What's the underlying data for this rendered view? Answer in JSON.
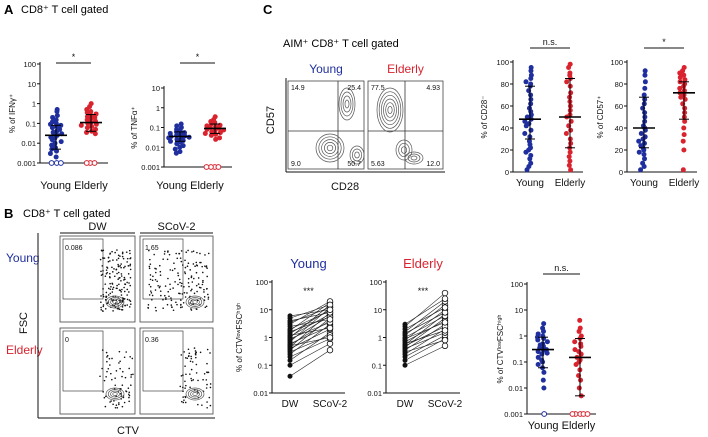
{
  "panels": {
    "A": {
      "letter": "A",
      "header": "CD8⁺ T cell gated"
    },
    "B": {
      "letter": "B",
      "header": "CD8⁺ T cell gated"
    },
    "C": {
      "letter": "C",
      "header": "AIM⁺ CD8⁺ T cell gated"
    }
  },
  "colors": {
    "young": "#1f2f9e",
    "elderly": "#d9232f",
    "axis": "#111111",
    "contour": "#555555"
  },
  "flow": {
    "C": {
      "xlabel": "CD28",
      "ylabel": "CD57",
      "plots": [
        {
          "group": "Young",
          "quadrants": [
            "14.9",
            "25.4",
            "9.0",
            "50.7"
          ]
        },
        {
          "group": "Elderly",
          "quadrants": [
            "77.5",
            "4.93",
            "5.63",
            "12.0"
          ]
        }
      ]
    },
    "B": {
      "xlabel": "CTV",
      "ylabel": "FSC",
      "columns": [
        "DW",
        "SCoV-2"
      ],
      "rows": [
        "Young",
        "Elderly"
      ],
      "gates": [
        [
          "0.086",
          "1.65"
        ],
        [
          "0",
          "0.36"
        ]
      ]
    }
  },
  "chart_data": [
    {
      "id": "A-ifng",
      "type": "scatter",
      "title": "IFNγ",
      "ylabel": "% of IFNγ⁺",
      "yscale": "log",
      "ylim": [
        0.001,
        100
      ],
      "yticks": [
        "0.001",
        "0.01",
        "0.1",
        "1",
        "10",
        "100"
      ],
      "categories": [
        "Young",
        "Elderly"
      ],
      "xlabel": "Young Elderly",
      "significance": "*",
      "series": [
        {
          "name": "Young",
          "median": 0.025,
          "iqr": [
            0.005,
            0.08
          ],
          "values": [
            0.5,
            0.4,
            0.25,
            0.2,
            0.15,
            0.12,
            0.1,
            0.09,
            0.08,
            0.07,
            0.06,
            0.05,
            0.04,
            0.035,
            0.03,
            0.025,
            0.02,
            0.018,
            0.015,
            0.012,
            0.01,
            0.008,
            0.006,
            0.005,
            0.004,
            0.003,
            0.002,
            0.001,
            0.001,
            0.001
          ]
        },
        {
          "name": "Elderly",
          "median": 0.11,
          "iqr": [
            0.04,
            0.28
          ],
          "values": [
            1.0,
            0.7,
            0.5,
            0.4,
            0.35,
            0.3,
            0.25,
            0.22,
            0.2,
            0.17,
            0.15,
            0.13,
            0.11,
            0.1,
            0.09,
            0.08,
            0.07,
            0.06,
            0.05,
            0.04,
            0.035,
            0.03,
            0.001,
            0.001,
            0.001
          ]
        }
      ]
    },
    {
      "id": "A-tnfa",
      "type": "scatter",
      "title": "TNFα",
      "ylabel": "% of TNFα⁺",
      "yscale": "log",
      "ylim": [
        0.001,
        10
      ],
      "yticks": [
        "0.001",
        "0.01",
        "0.1",
        "1",
        "10"
      ],
      "categories": [
        "Young",
        "Elderly"
      ],
      "xlabel": "Young Elderly",
      "significance": "*",
      "series": [
        {
          "name": "Young",
          "median": 0.035,
          "iqr": [
            0.02,
            0.06
          ],
          "values": [
            0.15,
            0.12,
            0.1,
            0.08,
            0.07,
            0.06,
            0.055,
            0.05,
            0.045,
            0.04,
            0.037,
            0.035,
            0.032,
            0.03,
            0.028,
            0.025,
            0.022,
            0.02,
            0.018,
            0.015,
            0.012,
            0.01,
            0.008,
            0.006,
            0.005
          ]
        },
        {
          "name": "Elderly",
          "median": 0.09,
          "iqr": [
            0.05,
            0.15
          ],
          "values": [
            0.35,
            0.25,
            0.2,
            0.18,
            0.15,
            0.13,
            0.12,
            0.11,
            0.1,
            0.09,
            0.08,
            0.075,
            0.07,
            0.06,
            0.055,
            0.05,
            0.045,
            0.04,
            0.03,
            0.025,
            0.001,
            0.001,
            0.001,
            0.001
          ]
        }
      ]
    },
    {
      "id": "C-cd28",
      "type": "scatter",
      "title": "n.s.",
      "ylabel": "% of CD28⁻",
      "yscale": "linear",
      "ylim": [
        0,
        100
      ],
      "yticks": [
        "0",
        "20",
        "40",
        "60",
        "80",
        "100"
      ],
      "categories": [
        "Young",
        "Elderly"
      ],
      "significance": "n.s.",
      "series": [
        {
          "name": "Young",
          "median": 48,
          "iqr": [
            30,
            78
          ],
          "values": [
            95,
            92,
            88,
            85,
            82,
            80,
            78,
            74,
            70,
            66,
            62,
            58,
            55,
            52,
            50,
            48,
            46,
            44,
            42,
            38,
            35,
            32,
            28,
            25,
            22,
            20,
            18,
            15,
            12,
            8,
            5,
            2
          ]
        },
        {
          "name": "Elderly",
          "median": 50,
          "iqr": [
            22,
            85
          ],
          "values": [
            98,
            95,
            90,
            88,
            85,
            82,
            78,
            72,
            68,
            64,
            60,
            56,
            52,
            50,
            46,
            42,
            38,
            35,
            30,
            26,
            22,
            18,
            14,
            10,
            6,
            2
          ]
        }
      ]
    },
    {
      "id": "C-cd57",
      "type": "scatter",
      "title": "*",
      "ylabel": "% of CD57⁺",
      "yscale": "linear",
      "ylim": [
        0,
        100
      ],
      "yticks": [
        "0",
        "20",
        "40",
        "60",
        "80",
        "100"
      ],
      "categories": [
        "Young",
        "Elderly"
      ],
      "significance": "*",
      "series": [
        {
          "name": "Young",
          "median": 40,
          "iqr": [
            22,
            68
          ],
          "values": [
            92,
            88,
            82,
            76,
            70,
            66,
            62,
            58,
            54,
            50,
            46,
            42,
            40,
            38,
            35,
            32,
            30,
            28,
            26,
            24,
            22,
            20,
            18,
            16,
            12,
            8,
            5,
            2
          ]
        },
        {
          "name": "Elderly",
          "median": 72,
          "iqr": [
            48,
            82
          ],
          "values": [
            95,
            92,
            90,
            88,
            86,
            84,
            82,
            80,
            78,
            76,
            74,
            72,
            70,
            68,
            66,
            62,
            58,
            54,
            50,
            46,
            40,
            34,
            28,
            20,
            2
          ]
        }
      ]
    },
    {
      "id": "B-young",
      "type": "paired",
      "title": "Young",
      "ylabel": "% of CTVˡᵒʷFSCʰⁱᵍʰ",
      "yscale": "log",
      "ylim": [
        0.01,
        100
      ],
      "yticks": [
        "0.01",
        "0.1",
        "1",
        "10",
        "100"
      ],
      "categories": [
        "DW",
        "SCoV-2"
      ],
      "significance": "***",
      "pairs": [
        [
          0.04,
          0.35
        ],
        [
          0.1,
          0.6
        ],
        [
          0.15,
          1.5
        ],
        [
          0.2,
          0.9
        ],
        [
          0.25,
          3.0
        ],
        [
          0.3,
          1.2
        ],
        [
          0.35,
          5.0
        ],
        [
          0.4,
          2.0
        ],
        [
          0.45,
          8.0
        ],
        [
          0.5,
          1.0
        ],
        [
          0.55,
          4.0
        ],
        [
          0.6,
          2.5
        ],
        [
          0.7,
          12.0
        ],
        [
          0.8,
          6.0
        ],
        [
          0.9,
          3.5
        ],
        [
          1.0,
          15.0
        ],
        [
          1.1,
          7.0
        ],
        [
          1.2,
          2.2
        ],
        [
          1.4,
          10.0
        ],
        [
          1.6,
          5.5
        ],
        [
          1.8,
          18.0
        ],
        [
          2.0,
          9.0
        ],
        [
          2.5,
          4.5
        ],
        [
          3.0,
          20.0
        ],
        [
          3.5,
          12.0
        ],
        [
          4.0,
          8.0
        ],
        [
          5.0,
          15.0
        ],
        [
          6.0,
          10.0
        ]
      ]
    },
    {
      "id": "B-elderly",
      "type": "paired",
      "title": "Elderly",
      "ylabel": "",
      "yscale": "log",
      "ylim": [
        0.01,
        100
      ],
      "yticks": [
        "0.01",
        "0.1",
        "1",
        "10",
        "100"
      ],
      "categories": [
        "DW",
        "SCoV-2"
      ],
      "significance": "***",
      "pairs": [
        [
          0.1,
          0.5
        ],
        [
          0.15,
          0.9
        ],
        [
          0.2,
          1.2
        ],
        [
          0.25,
          2.0
        ],
        [
          0.3,
          0.8
        ],
        [
          0.35,
          3.0
        ],
        [
          0.4,
          1.5
        ],
        [
          0.45,
          5.0
        ],
        [
          0.5,
          2.5
        ],
        [
          0.55,
          7.0
        ],
        [
          0.6,
          1.8
        ],
        [
          0.7,
          4.0
        ],
        [
          0.8,
          10.0
        ],
        [
          0.9,
          3.5
        ],
        [
          1.0,
          6.0
        ],
        [
          1.2,
          15.0
        ],
        [
          1.4,
          8.0
        ],
        [
          1.6,
          20.0
        ],
        [
          2.0,
          12.0
        ],
        [
          2.5,
          40.0
        ],
        [
          3.0,
          25.0
        ]
      ]
    },
    {
      "id": "B-summary",
      "type": "scatter",
      "title": "n.s.",
      "ylabel": "% of CTVˡᵒʷFSCʰⁱᵍʰ",
      "yscale": "log",
      "ylim": [
        0.001,
        100
      ],
      "yticks": [
        "0.001",
        "0.01",
        "0.1",
        "1",
        "10",
        "100"
      ],
      "categories": [
        "Young",
        "Elderly"
      ],
      "xlabel": "Young Elderly",
      "significance": "n.s.",
      "series": [
        {
          "name": "Young",
          "median": 0.3,
          "iqr": [
            0.06,
            0.9
          ],
          "values": [
            3.0,
            2.0,
            1.5,
            1.2,
            1.0,
            0.9,
            0.8,
            0.7,
            0.6,
            0.5,
            0.45,
            0.4,
            0.35,
            0.3,
            0.28,
            0.25,
            0.22,
            0.2,
            0.15,
            0.12,
            0.1,
            0.08,
            0.06,
            0.04,
            0.02,
            0.01,
            0.001
          ]
        },
        {
          "name": "Elderly",
          "median": 0.15,
          "iqr": [
            0.005,
            0.8
          ],
          "values": [
            4.0,
            2.0,
            1.5,
            1.0,
            0.8,
            0.6,
            0.5,
            0.4,
            0.3,
            0.25,
            0.2,
            0.15,
            0.12,
            0.1,
            0.08,
            0.05,
            0.03,
            0.02,
            0.01,
            0.005,
            0.001,
            0.001,
            0.001,
            0.001,
            0.001
          ]
        }
      ]
    }
  ]
}
